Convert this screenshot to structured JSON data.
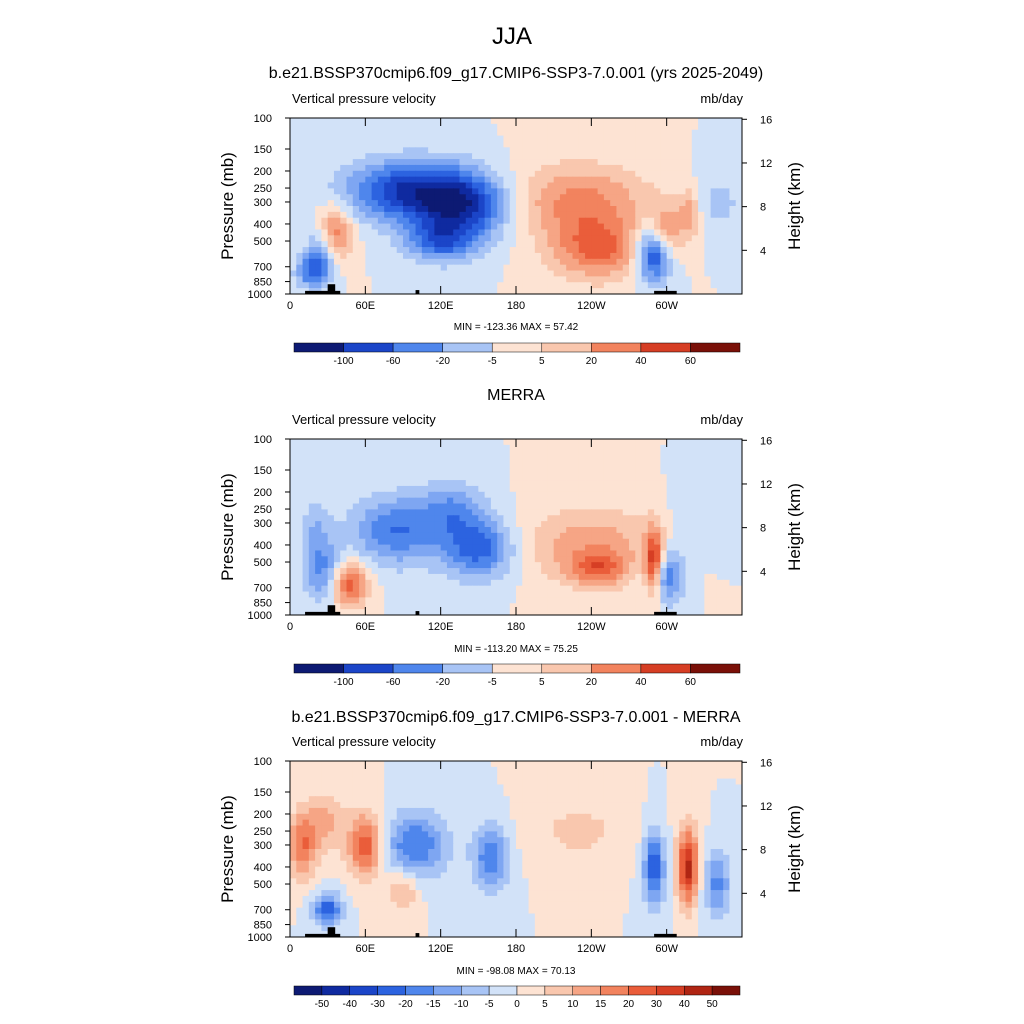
{
  "figure": {
    "title": "JJA"
  },
  "chart_data": [
    {
      "type": "heatmap",
      "title": "b.e21.BSSP370cmip6.f09_g17.CMIP6-SSP3-7.0.001 (yrs 2025-2049)",
      "left_label": "Vertical pressure velocity",
      "right_label": "mb/day",
      "ylabel": "Pressure (mb)",
      "ylabel_right": "Height (km)",
      "x_ticks": [
        "0",
        "60E",
        "120E",
        "180",
        "120W",
        "60W"
      ],
      "x_tick_values": [
        0,
        60,
        120,
        180,
        240,
        300
      ],
      "xlim": [
        0,
        360
      ],
      "y_ticks": [
        "100",
        "150",
        "200",
        "250",
        "300",
        "400",
        "500",
        "700",
        "850",
        "1000"
      ],
      "y_tick_values": [
        100,
        150,
        200,
        250,
        300,
        400,
        500,
        700,
        850,
        1000
      ],
      "y_log": true,
      "ylim": [
        1000,
        100
      ],
      "right_ticks": [
        "4",
        "8",
        "12",
        "16"
      ],
      "right_tick_values": [
        4,
        8,
        12,
        16
      ],
      "min_max": "MIN = -123.36  MAX =  57.42",
      "colorbar_labels": [
        "-100",
        "-60",
        "-20",
        "-5",
        "5",
        "20",
        "40",
        "60"
      ],
      "blobs": [
        {
          "lon": 35,
          "p": 450,
          "w": 10,
          "h": 0.25,
          "v": 30
        },
        {
          "lon": 25,
          "p": 600,
          "w": 8,
          "h": 0.25,
          "v": -30
        },
        {
          "lon": 15,
          "p": 750,
          "w": 8,
          "h": 0.15,
          "v": -25
        },
        {
          "lon": 95,
          "p": 260,
          "w": 35,
          "h": 0.28,
          "v": -45
        },
        {
          "lon": 140,
          "p": 320,
          "w": 25,
          "h": 0.3,
          "v": -40
        },
        {
          "lon": 120,
          "p": 500,
          "w": 20,
          "h": 0.2,
          "v": -30
        },
        {
          "lon": 230,
          "p": 300,
          "w": 40,
          "h": 0.35,
          "v": 25
        },
        {
          "lon": 245,
          "p": 560,
          "w": 25,
          "h": 0.28,
          "v": 30
        },
        {
          "lon": 290,
          "p": 600,
          "w": 10,
          "h": 0.25,
          "v": -45
        },
        {
          "lon": 300,
          "p": 450,
          "w": 8,
          "h": 0.25,
          "v": 25
        },
        {
          "lon": 318,
          "p": 350,
          "w": 6,
          "h": 0.25,
          "v": 20
        },
        {
          "lon": 340,
          "p": 300,
          "w": 18,
          "h": 0.3,
          "v": -10
        }
      ]
    },
    {
      "type": "heatmap",
      "title": "MERRA",
      "left_label": "Vertical pressure velocity",
      "right_label": "mb/day",
      "ylabel": "Pressure (mb)",
      "ylabel_right": "Height (km)",
      "x_ticks": [
        "0",
        "60E",
        "120E",
        "180",
        "120W",
        "60W"
      ],
      "x_tick_values": [
        0,
        60,
        120,
        180,
        240,
        300
      ],
      "xlim": [
        0,
        360
      ],
      "y_ticks": [
        "100",
        "150",
        "200",
        "250",
        "300",
        "400",
        "500",
        "700",
        "850",
        "1000"
      ],
      "y_tick_values": [
        100,
        150,
        200,
        250,
        300,
        400,
        500,
        700,
        850,
        1000
      ],
      "y_log": true,
      "ylim": [
        1000,
        100
      ],
      "right_ticks": [
        "4",
        "8",
        "12",
        "16"
      ],
      "right_tick_values": [
        4,
        8,
        12,
        16
      ],
      "min_max": "MIN = -113.20  MAX =  75.25",
      "colorbar_labels": [
        "-100",
        "-60",
        "-20",
        "-5",
        "5",
        "20",
        "40",
        "60"
      ],
      "blobs": [
        {
          "lon": 48,
          "p": 680,
          "w": 10,
          "h": 0.2,
          "v": 35
        },
        {
          "lon": 25,
          "p": 550,
          "w": 10,
          "h": 0.3,
          "v": -25
        },
        {
          "lon": 20,
          "p": 300,
          "w": 8,
          "h": 0.25,
          "v": -12
        },
        {
          "lon": 85,
          "p": 330,
          "w": 25,
          "h": 0.32,
          "v": -30
        },
        {
          "lon": 150,
          "p": 420,
          "w": 20,
          "h": 0.28,
          "v": -35
        },
        {
          "lon": 130,
          "p": 250,
          "w": 18,
          "h": 0.25,
          "v": -20
        },
        {
          "lon": 240,
          "p": 400,
          "w": 40,
          "h": 0.35,
          "v": 20
        },
        {
          "lon": 245,
          "p": 550,
          "w": 15,
          "h": 0.15,
          "v": 25
        },
        {
          "lon": 290,
          "p": 500,
          "w": 5,
          "h": 0.3,
          "v": 45
        },
        {
          "lon": 300,
          "p": 600,
          "w": 10,
          "h": 0.25,
          "v": -30
        },
        {
          "lon": 330,
          "p": 300,
          "w": 20,
          "h": 0.3,
          "v": -8
        }
      ]
    },
    {
      "type": "heatmap",
      "title": "b.e21.BSSP370cmip6.f09_g17.CMIP6-SSP3-7.0.001 - MERRA",
      "left_label": "Vertical pressure velocity",
      "right_label": "mb/day",
      "ylabel": "Pressure (mb)",
      "ylabel_right": "Height (km)",
      "x_ticks": [
        "0",
        "60E",
        "120E",
        "180",
        "120W",
        "60W"
      ],
      "x_tick_values": [
        0,
        60,
        120,
        180,
        240,
        300
      ],
      "xlim": [
        0,
        360
      ],
      "y_ticks": [
        "100",
        "150",
        "200",
        "250",
        "300",
        "400",
        "500",
        "700",
        "850",
        "1000"
      ],
      "y_tick_values": [
        100,
        150,
        200,
        250,
        300,
        400,
        500,
        700,
        850,
        1000
      ],
      "y_log": true,
      "ylim": [
        1000,
        100
      ],
      "right_ticks": [
        "4",
        "8",
        "12",
        "16"
      ],
      "right_tick_values": [
        4,
        8,
        12,
        16
      ],
      "min_max": "MIN = -98.08  MAX =  70.13",
      "colorbar_labels": [
        "-50",
        "-40",
        "-30",
        "-20",
        "-15",
        "-10",
        "-5",
        "0",
        "5",
        "10",
        "15",
        "20",
        "30",
        "40",
        "50"
      ],
      "blobs": [
        {
          "lon": 10,
          "p": 300,
          "w": 8,
          "h": 0.3,
          "v": 25
        },
        {
          "lon": 28,
          "p": 220,
          "w": 10,
          "h": 0.25,
          "v": 15
        },
        {
          "lon": 60,
          "p": 300,
          "w": 10,
          "h": 0.3,
          "v": 30
        },
        {
          "lon": 30,
          "p": 700,
          "w": 8,
          "h": 0.15,
          "v": -30
        },
        {
          "lon": 100,
          "p": 300,
          "w": 18,
          "h": 0.3,
          "v": -25
        },
        {
          "lon": 160,
          "p": 350,
          "w": 10,
          "h": 0.3,
          "v": -25
        },
        {
          "lon": 90,
          "p": 550,
          "w": 8,
          "h": 0.2,
          "v": 15
        },
        {
          "lon": 230,
          "p": 250,
          "w": 30,
          "h": 0.3,
          "v": 8
        },
        {
          "lon": 290,
          "p": 400,
          "w": 6,
          "h": 0.35,
          "v": -30
        },
        {
          "lon": 317,
          "p": 400,
          "w": 6,
          "h": 0.35,
          "v": 40
        },
        {
          "lon": 340,
          "p": 500,
          "w": 8,
          "h": 0.3,
          "v": -20
        }
      ]
    }
  ]
}
